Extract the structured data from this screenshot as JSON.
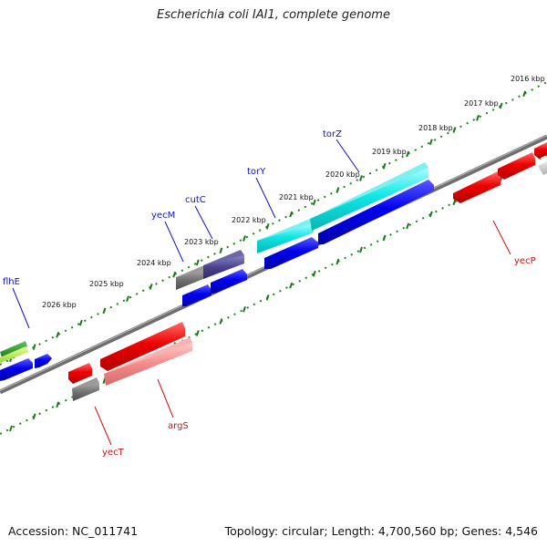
{
  "title": "Escherichia coli IAI1, complete genome",
  "footer": {
    "accession": "Accession: NC_011741",
    "summary": "Topology: circular; Length: 4,700,560 bp; Genes: 4,546"
  },
  "colors": {
    "backbone": "#7f7f7f",
    "ticks": "#1a7f1a",
    "label_forward": "#1010c8",
    "label_reverse": "#d01010"
  },
  "kbp_labels": [
    "2016 kbp",
    "2017 kbp",
    "2018 kbp",
    "2019 kbp",
    "2020 kbp",
    "2021 kbp",
    "2022 kbp",
    "2023 kbp",
    "2024 kbp",
    "2025 kbp",
    "2026 kbp"
  ],
  "gene_labels": {
    "flhE": "flhE",
    "yecM": "yecM",
    "cutC": "cutC",
    "torY": "torY",
    "torZ": "torZ",
    "yecP": "yecP",
    "argS": "argS",
    "yecT": "yecT"
  }
}
